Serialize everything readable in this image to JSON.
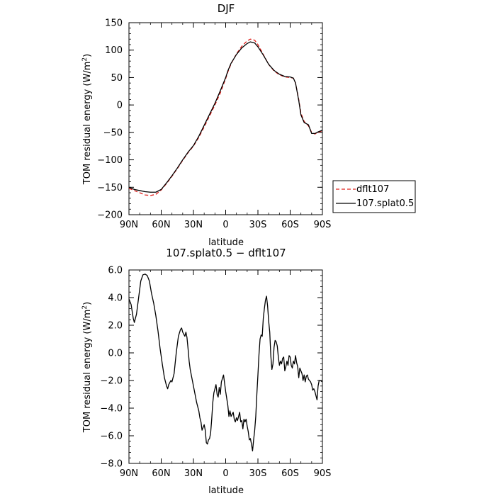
{
  "chart_data": [
    {
      "type": "line",
      "title": "DJF",
      "xlabel": "latitude",
      "ylabel": "TOM residual energy (W/m²)",
      "ylabel_main": "TOM residual energy (W/m",
      "ylabel_sup": "2",
      "ylabel_close": ")",
      "xlim": [
        90,
        -90
      ],
      "ylim": [
        -200,
        150
      ],
      "x_ticks": [
        {
          "value": 90,
          "label": "90N"
        },
        {
          "value": 60,
          "label": "60N"
        },
        {
          "value": 30,
          "label": "30N"
        },
        {
          "value": 0,
          "label": "0"
        },
        {
          "value": -30,
          "label": "30S"
        },
        {
          "value": -60,
          "label": "60S"
        },
        {
          "value": -90,
          "label": "90S"
        }
      ],
      "y_ticks": [
        {
          "value": 150,
          "label": "150"
        },
        {
          "value": 100,
          "label": "100"
        },
        {
          "value": 50,
          "label": "50"
        },
        {
          "value": 0,
          "label": "0"
        },
        {
          "value": -50,
          "label": "−50"
        },
        {
          "value": -100,
          "label": "−100"
        },
        {
          "value": -150,
          "label": "−150"
        },
        {
          "value": -200,
          "label": "−200"
        }
      ],
      "legend_position": "right",
      "series": [
        {
          "name": "dflt107",
          "color": "#e0201c",
          "dash": "dashed",
          "points": [
            [
              90,
              -152
            ],
            [
              85,
              -156
            ],
            [
              80,
              -160
            ],
            [
              75,
              -164
            ],
            [
              70,
              -165
            ],
            [
              65,
              -163
            ],
            [
              60,
              -155
            ],
            [
              55,
              -143
            ],
            [
              50,
              -130
            ],
            [
              45,
              -116
            ],
            [
              40,
              -101
            ],
            [
              35,
              -87
            ],
            [
              30,
              -75
            ],
            [
              25,
              -59
            ],
            [
              20,
              -40
            ],
            [
              15,
              -20
            ],
            [
              10,
              0
            ],
            [
              5,
              22
            ],
            [
              0,
              48
            ],
            [
              -2,
              60
            ],
            [
              -5,
              75
            ],
            [
              -10,
              93
            ],
            [
              -15,
              107
            ],
            [
              -20,
              117
            ],
            [
              -23,
              120
            ],
            [
              -27,
              118
            ],
            [
              -30,
              110
            ],
            [
              -35,
              92
            ],
            [
              -40,
              74
            ],
            [
              -45,
              62
            ],
            [
              -50,
              55
            ],
            [
              -55,
              51
            ],
            [
              -60,
              50
            ],
            [
              -63,
              49
            ],
            [
              -65,
              40
            ],
            [
              -68,
              10
            ],
            [
              -70,
              -15
            ],
            [
              -73,
              -30
            ],
            [
              -77,
              -38
            ],
            [
              -80,
              -50
            ],
            [
              -83,
              -53
            ],
            [
              -86,
              -50
            ],
            [
              -90,
              -47
            ]
          ]
        },
        {
          "name": "107.splat0.5",
          "color": "#000000",
          "dash": "solid",
          "points": [
            [
              90,
              -150
            ],
            [
              85,
              -154
            ],
            [
              80,
              -156
            ],
            [
              75,
              -158
            ],
            [
              70,
              -159
            ],
            [
              65,
              -159
            ],
            [
              60,
              -154
            ],
            [
              55,
              -142
            ],
            [
              50,
              -129
            ],
            [
              45,
              -115
            ],
            [
              40,
              -100
            ],
            [
              35,
              -86
            ],
            [
              30,
              -74
            ],
            [
              25,
              -57
            ],
            [
              20,
              -37
            ],
            [
              15,
              -17
            ],
            [
              10,
              3
            ],
            [
              5,
              26
            ],
            [
              0,
              50
            ],
            [
              -2,
              62
            ],
            [
              -5,
              76
            ],
            [
              -10,
              92
            ],
            [
              -15,
              104
            ],
            [
              -20,
              112
            ],
            [
              -23,
              115
            ],
            [
              -27,
              113
            ],
            [
              -30,
              106
            ],
            [
              -35,
              91
            ],
            [
              -40,
              74
            ],
            [
              -45,
              63
            ],
            [
              -50,
              56
            ],
            [
              -55,
              52
            ],
            [
              -60,
              51
            ],
            [
              -63,
              49
            ],
            [
              -65,
              40
            ],
            [
              -68,
              8
            ],
            [
              -70,
              -18
            ],
            [
              -73,
              -32
            ],
            [
              -77,
              -36
            ],
            [
              -80,
              -52
            ],
            [
              -83,
              -52
            ],
            [
              -86,
              -49
            ],
            [
              -90,
              -46
            ]
          ]
        }
      ]
    },
    {
      "type": "line",
      "title": "107.splat0.5 − dflt107",
      "xlabel": "latitude",
      "ylabel": "TOM residual energy (W/m²)",
      "ylabel_main": "TOM residual energy (W/m",
      "ylabel_sup": "2",
      "ylabel_close": ")",
      "xlim": [
        90,
        -90
      ],
      "ylim": [
        -8.0,
        6.0
      ],
      "x_ticks": [
        {
          "value": 90,
          "label": "90N"
        },
        {
          "value": 60,
          "label": "60N"
        },
        {
          "value": 30,
          "label": "30N"
        },
        {
          "value": 0,
          "label": "0"
        },
        {
          "value": -30,
          "label": "30S"
        },
        {
          "value": -60,
          "label": "60S"
        },
        {
          "value": -90,
          "label": "90S"
        }
      ],
      "y_ticks": [
        {
          "value": 6.0,
          "label": "6.0"
        },
        {
          "value": 4.0,
          "label": "4.0"
        },
        {
          "value": 2.0,
          "label": "2.0"
        },
        {
          "value": 0.0,
          "label": "0.0"
        },
        {
          "value": -2.0,
          "label": "−2.0"
        },
        {
          "value": -4.0,
          "label": "−4.0"
        },
        {
          "value": -6.0,
          "label": "−6.0"
        },
        {
          "value": -8.0,
          "label": "−8.0"
        }
      ],
      "series": [
        {
          "color": "#000000",
          "dash": "solid",
          "points": [
            [
              90,
              3.9
            ],
            [
              88,
              3.5
            ],
            [
              86,
              2.5
            ],
            [
              85,
              2.2
            ],
            [
              83,
              2.8
            ],
            [
              81,
              4.0
            ],
            [
              79,
              5.2
            ],
            [
              77,
              5.65
            ],
            [
              75,
              5.7
            ],
            [
              73,
              5.6
            ],
            [
              71,
              5.2
            ],
            [
              69,
              4.3
            ],
            [
              67,
              3.6
            ],
            [
              65,
              2.7
            ],
            [
              63,
              1.6
            ],
            [
              61,
              0.3
            ],
            [
              59,
              -0.8
            ],
            [
              57,
              -1.8
            ],
            [
              55,
              -2.4
            ],
            [
              54,
              -2.6
            ],
            [
              53,
              -2.3
            ],
            [
              51,
              -2.0
            ],
            [
              50,
              -2.1
            ],
            [
              48,
              -1.5
            ],
            [
              46,
              0.0
            ],
            [
              44,
              1.2
            ],
            [
              42,
              1.7
            ],
            [
              41,
              1.8
            ],
            [
              40,
              1.5
            ],
            [
              38,
              1.2
            ],
            [
              37,
              1.5
            ],
            [
              36,
              1.1
            ],
            [
              35,
              0.3
            ],
            [
              34,
              -0.6
            ],
            [
              33,
              -1.2
            ],
            [
              31,
              -2.0
            ],
            [
              29,
              -2.8
            ],
            [
              27,
              -3.6
            ],
            [
              25,
              -4.2
            ],
            [
              24,
              -4.7
            ],
            [
              23,
              -5.0
            ],
            [
              22,
              -5.6
            ],
            [
              20,
              -5.2
            ],
            [
              19,
              -5.6
            ],
            [
              18,
              -6.5
            ],
            [
              17,
              -6.6
            ],
            [
              16,
              -6.3
            ],
            [
              15,
              -6.2
            ],
            [
              14,
              -5.8
            ],
            [
              13,
              -4.8
            ],
            [
              12,
              -3.6
            ],
            [
              11,
              -2.9
            ],
            [
              10,
              -2.6
            ],
            [
              9,
              -2.3
            ],
            [
              8,
              -3.0
            ],
            [
              7,
              -3.2
            ],
            [
              6,
              -2.5
            ],
            [
              5,
              -3.0
            ],
            [
              4,
              -2.1
            ],
            [
              2,
              -1.6
            ],
            [
              1,
              -2.2
            ],
            [
              0,
              -2.8
            ],
            [
              -2,
              -3.8
            ],
            [
              -3,
              -4.6
            ],
            [
              -4,
              -4.2
            ],
            [
              -5,
              -4.6
            ],
            [
              -7,
              -4.3
            ],
            [
              -8,
              -4.8
            ],
            [
              -9,
              -5.0
            ],
            [
              -10,
              -4.7
            ],
            [
              -11,
              -4.9
            ],
            [
              -12,
              -4.6
            ],
            [
              -13,
              -4.3
            ],
            [
              -14,
              -5.0
            ],
            [
              -15,
              -4.9
            ],
            [
              -16,
              -5.5
            ],
            [
              -17,
              -4.8
            ],
            [
              -18,
              -5.0
            ],
            [
              -19,
              -4.8
            ],
            [
              -20,
              -5.3
            ],
            [
              -21,
              -5.7
            ],
            [
              -22,
              -6.3
            ],
            [
              -23,
              -6.2
            ],
            [
              -24,
              -6.6
            ],
            [
              -25,
              -7.1
            ],
            [
              -26,
              -6.3
            ],
            [
              -27,
              -5.6
            ],
            [
              -28,
              -4.6
            ],
            [
              -29,
              -3.0
            ],
            [
              -30,
              -1.6
            ],
            [
              -31,
              -0.1
            ],
            [
              -32,
              1.0
            ],
            [
              -33,
              1.3
            ],
            [
              -34,
              1.2
            ],
            [
              -35,
              2.5
            ],
            [
              -36,
              3.2
            ],
            [
              -37,
              3.8
            ],
            [
              -38,
              4.1
            ],
            [
              -39,
              3.4
            ],
            [
              -40,
              2.3
            ],
            [
              -41,
              1.5
            ],
            [
              -42,
              -0.2
            ],
            [
              -43,
              -1.2
            ],
            [
              -44,
              -0.8
            ],
            [
              -45,
              0.4
            ],
            [
              -46,
              0.9
            ],
            [
              -47,
              0.8
            ],
            [
              -48,
              0.5
            ],
            [
              -49,
              -0.3
            ],
            [
              -50,
              -0.9
            ],
            [
              -51,
              -0.6
            ],
            [
              -52,
              -0.8
            ],
            [
              -53,
              -0.4
            ],
            [
              -54,
              -0.3
            ],
            [
              -55,
              -1.3
            ],
            [
              -56,
              -1.0
            ],
            [
              -57,
              -0.6
            ],
            [
              -58,
              -0.9
            ],
            [
              -59,
              -0.2
            ],
            [
              -60,
              -0.3
            ],
            [
              -61,
              -0.9
            ],
            [
              -62,
              -1.1
            ],
            [
              -63,
              -0.6
            ],
            [
              -64,
              -0.8
            ],
            [
              -65,
              -0.2
            ],
            [
              -66,
              -0.7
            ],
            [
              -67,
              -1.0
            ],
            [
              -68,
              -1.8
            ],
            [
              -69,
              -1.1
            ],
            [
              -70,
              -1.3
            ],
            [
              -71,
              -1.5
            ],
            [
              -72,
              -2.0
            ],
            [
              -73,
              -1.6
            ],
            [
              -74,
              -2.1
            ],
            [
              -75,
              -1.7
            ],
            [
              -76,
              -1.6
            ],
            [
              -77,
              -1.9
            ],
            [
              -78,
              -2.0
            ],
            [
              -79,
              -2.1
            ],
            [
              -80,
              -2.3
            ],
            [
              -81,
              -2.7
            ],
            [
              -82,
              -2.6
            ],
            [
              -83,
              -2.8
            ],
            [
              -84,
              -3.1
            ],
            [
              -85,
              -3.4
            ],
            [
              -86,
              -2.4
            ],
            [
              -87,
              -2.0
            ],
            [
              -88,
              -2.0
            ],
            [
              -90,
              -2.1
            ]
          ]
        }
      ]
    }
  ]
}
